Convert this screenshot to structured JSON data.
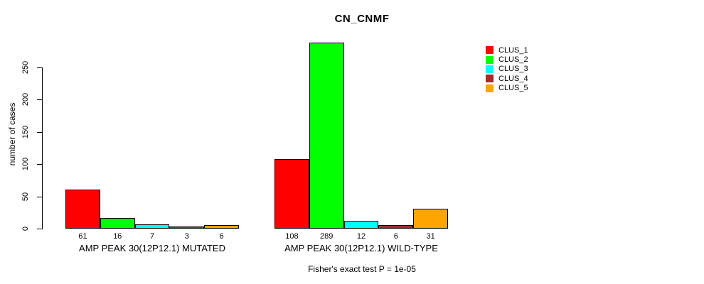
{
  "chart_data": {
    "type": "bar",
    "title": "CN_CNMF",
    "ylabel": "number of cases",
    "xlabel": "",
    "ylim": [
      0,
      250
    ],
    "yticks": [
      0,
      50,
      100,
      150,
      200,
      250
    ],
    "grid": false,
    "legend_position": "right",
    "bar_border_color": "#000000",
    "groups": [
      {
        "label": "AMP PEAK 30(12P12.1) MUTATED",
        "values": [
          61,
          16,
          7,
          3,
          6
        ]
      },
      {
        "label": "AMP PEAK 30(12P12.1) WILD-TYPE",
        "values": [
          108,
          289,
          12,
          6,
          31
        ]
      }
    ],
    "series": [
      {
        "name": "CLUS_1",
        "color": "#FF0000"
      },
      {
        "name": "CLUS_2",
        "color": "#00FF00"
      },
      {
        "name": "CLUS_3",
        "color": "#00FFFF"
      },
      {
        "name": "CLUS_4",
        "color": "#A52A2A"
      },
      {
        "name": "CLUS_5",
        "color": "#FFA500"
      }
    ],
    "annotation": "Fisher's exact test P = 1e-05"
  }
}
